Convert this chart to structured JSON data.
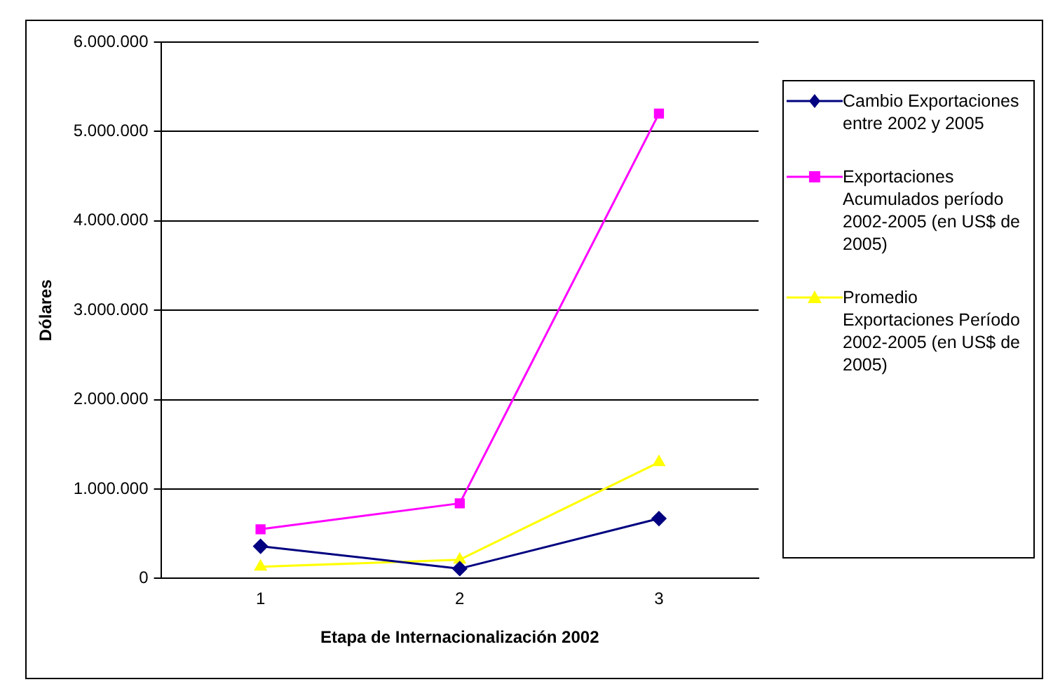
{
  "chart_data": {
    "type": "line",
    "xlabel": "Etapa de Internacionalización 2002",
    "ylabel": "Dólares",
    "categories": [
      "1",
      "2",
      "3"
    ],
    "series": [
      {
        "name": "Cambio Exportaciones entre 2002 y 2005",
        "color": "#000080",
        "marker": "diamond",
        "values": [
          360000,
          110000,
          670000
        ]
      },
      {
        "name": "Exportaciones Acumulados período 2002-2005 (en US$ de 2005)",
        "color": "#ff00ff",
        "marker": "square",
        "values": [
          550000,
          840000,
          5200000
        ]
      },
      {
        "name": "Promedio Exportaciones Período 2002-2005 (en US$ de 2005)",
        "color": "#ffff00",
        "marker": "triangle",
        "values": [
          130000,
          210000,
          1300000
        ]
      }
    ],
    "ylim": [
      0,
      6000000
    ],
    "yticks": [
      {
        "value": 0,
        "label": "0"
      },
      {
        "value": 1000000,
        "label": "1.000.000"
      },
      {
        "value": 2000000,
        "label": "2.000.000"
      },
      {
        "value": 3000000,
        "label": "3.000.000"
      },
      {
        "value": 4000000,
        "label": "4.000.000"
      },
      {
        "value": 5000000,
        "label": "5.000.000"
      },
      {
        "value": 6000000,
        "label": "6.000.000"
      }
    ],
    "grid": "y",
    "legend": "right",
    "line_style": "solid"
  }
}
